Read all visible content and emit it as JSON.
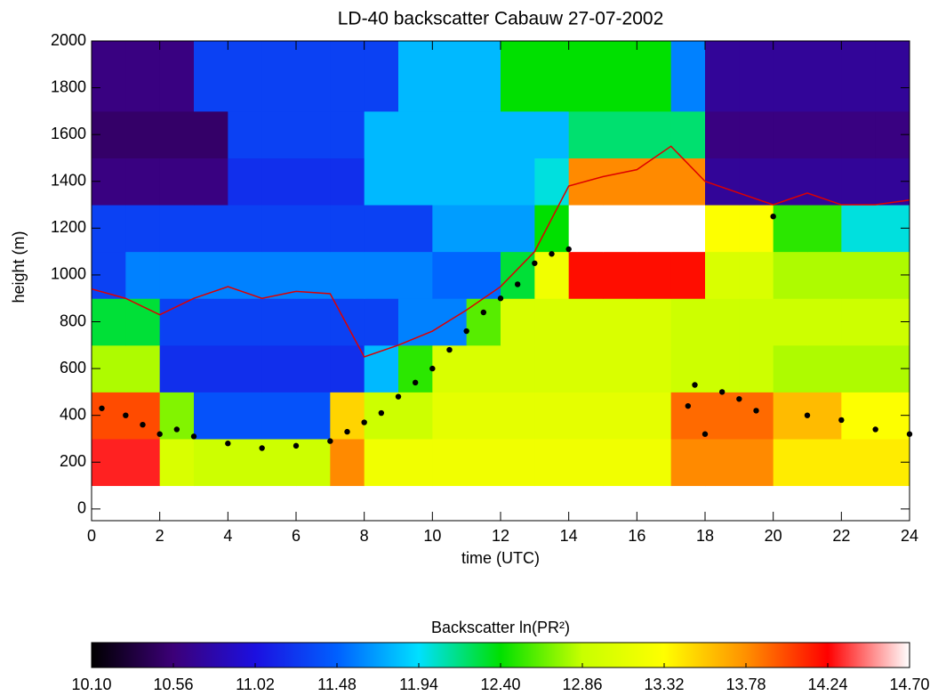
{
  "chart_data": {
    "type": "heatmap",
    "title": "LD-40 backscatter Cabauw 27-07-2002",
    "x_label": "time (UTC)",
    "y_label": "height (m)",
    "colorbar_label": "Backscatter ln(PR²)",
    "xlim": [
      0,
      24
    ],
    "ylim": [
      -50,
      2000
    ],
    "xticks": [
      0,
      2,
      4,
      6,
      8,
      10,
      12,
      14,
      16,
      18,
      20,
      22,
      24
    ],
    "yticks": [
      0,
      200,
      400,
      600,
      800,
      1000,
      1200,
      1400,
      1600,
      1800,
      2000
    ],
    "x_bins": [
      0,
      1,
      2,
      3,
      4,
      5,
      6,
      7,
      8,
      9,
      10,
      11,
      12,
      13,
      14,
      15,
      16,
      17,
      18,
      19,
      20,
      21,
      22,
      23,
      24
    ],
    "y_bins": [
      100,
      300,
      500,
      700,
      900,
      1100,
      1300,
      1500,
      1700,
      2000
    ],
    "values": [
      [
        14.3,
        14.3,
        13.0,
        12.9,
        12.9,
        12.9,
        12.9,
        13.8,
        13.2,
        13.2,
        13.2,
        13.2,
        13.2,
        13.2,
        13.2,
        13.2,
        13.2,
        13.8,
        13.8,
        13.8,
        13.4,
        13.4,
        13.4,
        13.4
      ],
      [
        14.0,
        14.0,
        12.7,
        11.4,
        11.4,
        11.4,
        11.4,
        13.5,
        12.9,
        12.9,
        13.1,
        13.1,
        13.1,
        13.1,
        13.1,
        13.1,
        13.1,
        13.9,
        13.9,
        13.9,
        13.6,
        13.6,
        13.3,
        13.3
      ],
      [
        12.8,
        12.8,
        11.2,
        11.2,
        11.2,
        11.2,
        11.2,
        11.2,
        11.8,
        12.5,
        13.0,
        13.0,
        13.0,
        13.0,
        13.0,
        13.0,
        13.0,
        12.9,
        12.9,
        12.9,
        12.8,
        12.8,
        12.8,
        12.8
      ],
      [
        12.3,
        12.3,
        11.3,
        11.3,
        11.3,
        11.3,
        11.3,
        11.3,
        11.3,
        11.6,
        11.6,
        12.6,
        13.0,
        13.0,
        13.0,
        13.0,
        13.0,
        12.9,
        12.9,
        12.9,
        12.9,
        12.9,
        12.9,
        12.9
      ],
      [
        11.3,
        11.6,
        11.6,
        11.6,
        11.6,
        11.6,
        11.6,
        11.6,
        11.6,
        11.6,
        11.5,
        11.5,
        12.3,
        13.2,
        14.2,
        14.2,
        14.2,
        14.2,
        13.0,
        13.0,
        12.8,
        12.8,
        12.8,
        12.8
      ],
      [
        11.3,
        11.3,
        11.3,
        11.3,
        11.3,
        11.3,
        11.3,
        11.3,
        11.3,
        11.3,
        11.7,
        11.7,
        11.7,
        12.4,
        14.7,
        14.7,
        14.7,
        14.7,
        13.3,
        13.3,
        12.5,
        12.5,
        12.0,
        12.0
      ],
      [
        10.6,
        10.6,
        10.6,
        10.6,
        11.2,
        11.2,
        11.2,
        11.2,
        11.8,
        11.8,
        11.8,
        11.8,
        11.8,
        12.0,
        13.8,
        13.8,
        13.8,
        13.8,
        10.7,
        10.7,
        10.7,
        10.7,
        10.7,
        10.7
      ],
      [
        10.5,
        10.5,
        10.5,
        10.5,
        11.3,
        11.3,
        11.3,
        11.3,
        11.8,
        11.8,
        11.8,
        11.8,
        11.8,
        11.8,
        12.2,
        12.2,
        12.2,
        12.2,
        10.6,
        10.6,
        10.6,
        10.6,
        10.6,
        10.6
      ],
      [
        10.6,
        10.6,
        10.6,
        11.3,
        11.3,
        11.3,
        11.3,
        11.3,
        11.3,
        11.8,
        11.8,
        11.8,
        12.4,
        12.4,
        12.4,
        12.4,
        12.4,
        11.6,
        10.7,
        10.7,
        10.7,
        10.7,
        10.7,
        10.7
      ]
    ],
    "colormap": [
      "#000000",
      "#3c0078",
      "#1c10e0",
      "#0060ff",
      "#00e0ff",
      "#00e000",
      "#c8ff00",
      "#ffff00",
      "#ff9000",
      "#ff0000",
      "#ffffff"
    ],
    "clim": [
      10.1,
      14.7
    ],
    "cticks": [
      {
        "value": 10.1,
        "label": "10.10"
      },
      {
        "value": 10.56,
        "label": "10.56"
      },
      {
        "value": 11.02,
        "label": "11.02"
      },
      {
        "value": 11.48,
        "label": "11.48"
      },
      {
        "value": 11.94,
        "label": "11.94"
      },
      {
        "value": 12.4,
        "label": "12.40"
      },
      {
        "value": 12.86,
        "label": "12.86"
      },
      {
        "value": 13.32,
        "label": "13.32"
      },
      {
        "value": 13.78,
        "label": "13.78"
      },
      {
        "value": 14.24,
        "label": "14.24"
      },
      {
        "value": 14.7,
        "label": "14.70"
      }
    ],
    "overlays": [
      {
        "type": "line",
        "color": "#dd0000",
        "x": [
          0,
          1,
          2,
          3,
          4,
          5,
          6,
          7,
          8,
          9,
          10,
          11,
          12,
          13,
          14,
          15,
          16,
          17,
          18,
          19,
          20,
          21,
          22,
          23,
          24
        ],
        "values": [
          940,
          900,
          830,
          900,
          950,
          900,
          930,
          920,
          650,
          700,
          760,
          850,
          950,
          1100,
          1380,
          1420,
          1450,
          1550,
          1400,
          1350,
          1300,
          1350,
          1300,
          1300,
          1320
        ]
      },
      {
        "type": "scatter",
        "color": "#000000",
        "x": [
          0.3,
          1,
          1.5,
          2,
          2.5,
          3,
          4,
          5,
          6,
          7,
          7.5,
          8,
          8.5,
          9,
          9.5,
          10,
          10.5,
          11,
          11.5,
          12,
          12.5,
          13,
          13.5,
          14,
          17.5,
          17.7,
          18,
          18.5,
          19,
          19.5,
          20,
          21,
          22,
          23,
          24
        ],
        "values": [
          430,
          400,
          360,
          320,
          340,
          310,
          280,
          260,
          270,
          290,
          330,
          370,
          410,
          480,
          540,
          600,
          680,
          760,
          840,
          900,
          960,
          1050,
          1090,
          1110,
          440,
          530,
          320,
          500,
          470,
          420,
          1250,
          400,
          380,
          340,
          320
        ]
      }
    ]
  }
}
